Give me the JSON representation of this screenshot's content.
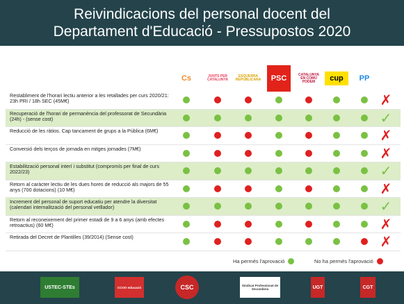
{
  "header": {
    "title_line1": "Reivindicacions del personal docent del",
    "title_line2": "Departament d'Educació - Pressupostos 2020"
  },
  "parties": [
    {
      "name": "Cs",
      "color": "#f08a2a"
    },
    {
      "name": "JUNTS PER CATALUNYA",
      "color": "#e63e5c"
    },
    {
      "name": "ESQUERRA REPUBLICANA",
      "color": "#d9a300"
    },
    {
      "name": "PSC",
      "color": "#e2231a"
    },
    {
      "name": "CATALUNYA EN COMÚ PODEM",
      "color": "#c0143c"
    },
    {
      "name": "cup",
      "color": "#ffe000"
    },
    {
      "name": "PP",
      "color": "#1e88e5"
    }
  ],
  "rows": [
    {
      "text": "Restabliment de l'horari lectiu anterior a les retallades per curs 2020/21: 23h PRI / 18h SEC (45M€)",
      "votes": [
        "g",
        "r",
        "r",
        "g",
        "r",
        "g",
        "g"
      ],
      "result": "no"
    },
    {
      "text": "Recuperació de l'horari de permanència del professorat de Secundària (24h) - (sense cost)",
      "votes": [
        "g",
        "g",
        "g",
        "g",
        "g",
        "g",
        "g"
      ],
      "result": "yes"
    },
    {
      "text": "Reducció de les ràtios. Cap tancament de grups a la Pública (6M€)",
      "votes": [
        "g",
        "r",
        "r",
        "g",
        "r",
        "g",
        "g"
      ],
      "result": "no"
    },
    {
      "text": "Conversió dels terços de jornada en mitges jornades (7M€)",
      "votes": [
        "g",
        "r",
        "r",
        "g",
        "r",
        "g",
        "g"
      ],
      "result": "no"
    },
    {
      "text": "Estabilització personal interí i substitut (compromís per final de curs 2022/23)",
      "votes": [
        "g",
        "g",
        "g",
        "g",
        "g",
        "g",
        "g"
      ],
      "result": "yes"
    },
    {
      "text": "Retorn al caràcter lectiu de les dues hores de reducció als majors de 55 anys (700 dotacions) (10 M€)",
      "votes": [
        "g",
        "r",
        "r",
        "g",
        "r",
        "g",
        "g"
      ],
      "result": "no"
    },
    {
      "text": "Increment del personal de suport educatiu per atendre la diversitat (calendari internalització del personal vetllador)",
      "votes": [
        "g",
        "g",
        "g",
        "g",
        "g",
        "g",
        "g"
      ],
      "result": "yes"
    },
    {
      "text": "Retorn al reconeixement del primer estadi de 9 a 6 anys (amb efectes retroactius) (60 M€)",
      "votes": [
        "g",
        "r",
        "r",
        "g",
        "r",
        "g",
        "g"
      ],
      "result": "no"
    },
    {
      "text": "Retirada del Decret de Plantilles (39/2014) (Sense cost)",
      "votes": [
        "g",
        "r",
        "r",
        "g",
        "g",
        "g",
        "r"
      ],
      "result": "no"
    }
  ],
  "results": {
    "yes": "✓",
    "no": "✗"
  },
  "colors": {
    "green": "#7ac143",
    "red": "#e02020",
    "header_bg": "#24434b",
    "row_highlight": "#dcedc8"
  },
  "legend": {
    "approved": "Ha permès l'aprovació",
    "not_approved": "No ha permès l'aprovació"
  },
  "footer": {
    "unions": [
      {
        "name": "USTEC-STEs",
        "bg": "#2e7d32",
        "color": "#ffffff"
      },
      {
        "name": "CCOO educació",
        "bg": "#d32f2f",
        "color": "#ffffff"
      },
      {
        "name": "CSC",
        "bg": "#c62828",
        "color": "#ffffff"
      },
      {
        "name": "Sindicat Professional de Secundària",
        "bg": "#ffffff",
        "color": "#333333"
      },
      {
        "name": "UGT",
        "bg": "#c62828",
        "color": "#ffffff"
      },
      {
        "name": "CGT",
        "bg": "#c62828",
        "color": "#ffffff"
      }
    ]
  }
}
